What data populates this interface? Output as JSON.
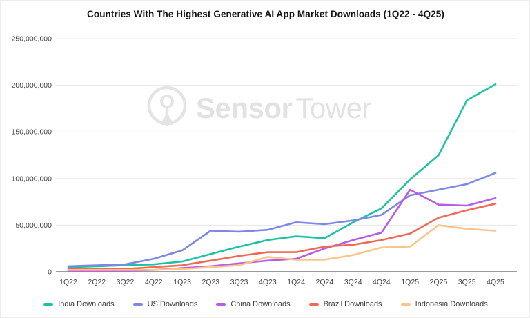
{
  "title": "Countries With The Highest Generative AI App Market Downloads (1Q22 - 4Q25)",
  "watermark": {
    "bold": "Sensor",
    "light": "Tower"
  },
  "chart_data": {
    "type": "line",
    "title": "Countries With The Highest Generative AI App Market Downloads (1Q22 - 4Q25)",
    "xlabel": "",
    "ylabel": "",
    "x_categories": [
      "1Q22",
      "2Q22",
      "3Q22",
      "4Q22",
      "1Q23",
      "2Q23",
      "3Q23",
      "4Q23",
      "1Q24",
      "2Q24",
      "3Q24",
      "4Q24",
      "1Q25",
      "2Q25",
      "3Q25",
      "4Q25"
    ],
    "ylim": [
      0,
      250000000
    ],
    "grid": "horizontal",
    "legend_position": "bottom",
    "y_ticks": {
      "values": [
        0,
        50000000,
        100000000,
        150000000,
        200000000,
        250000000
      ],
      "labels": [
        "0",
        "50,000,000",
        "100,000,000",
        "150,000,000",
        "200,000,000",
        "250,000,000"
      ]
    },
    "series": [
      {
        "name": "India Downloads",
        "color": "#1cc2a4",
        "values": [
          5000000,
          6000000,
          7000000,
          8000000,
          11000000,
          19000000,
          27000000,
          34000000,
          38000000,
          36000000,
          53000000,
          68000000,
          99000000,
          125000000,
          184000000,
          201000000
        ]
      },
      {
        "name": "US Downloads",
        "color": "#7c87e8",
        "values": [
          6000000,
          7000000,
          8000000,
          14000000,
          23000000,
          44000000,
          43000000,
          45000000,
          53000000,
          51000000,
          55000000,
          61000000,
          82000000,
          88000000,
          94000000,
          106000000
        ]
      },
      {
        "name": "China Downloads",
        "color": "#b75ce8",
        "values": [
          1000000,
          1000000,
          1000000,
          2000000,
          4000000,
          6000000,
          9000000,
          12000000,
          14000000,
          25000000,
          34000000,
          42000000,
          88000000,
          72000000,
          71000000,
          79000000
        ]
      },
      {
        "name": "Brazil Downloads",
        "color": "#ee6a56",
        "values": [
          3000000,
          3000000,
          3000000,
          5000000,
          7000000,
          12000000,
          17000000,
          21000000,
          21000000,
          27000000,
          29000000,
          34000000,
          41000000,
          58000000,
          66000000,
          73000000
        ]
      },
      {
        "name": "Indonesia Downloads",
        "color": "#f9c588",
        "values": [
          2000000,
          2000000,
          2000000,
          2000000,
          3000000,
          5000000,
          7000000,
          16000000,
          13000000,
          13000000,
          18000000,
          26000000,
          27000000,
          50000000,
          46000000,
          44000000
        ]
      }
    ]
  }
}
